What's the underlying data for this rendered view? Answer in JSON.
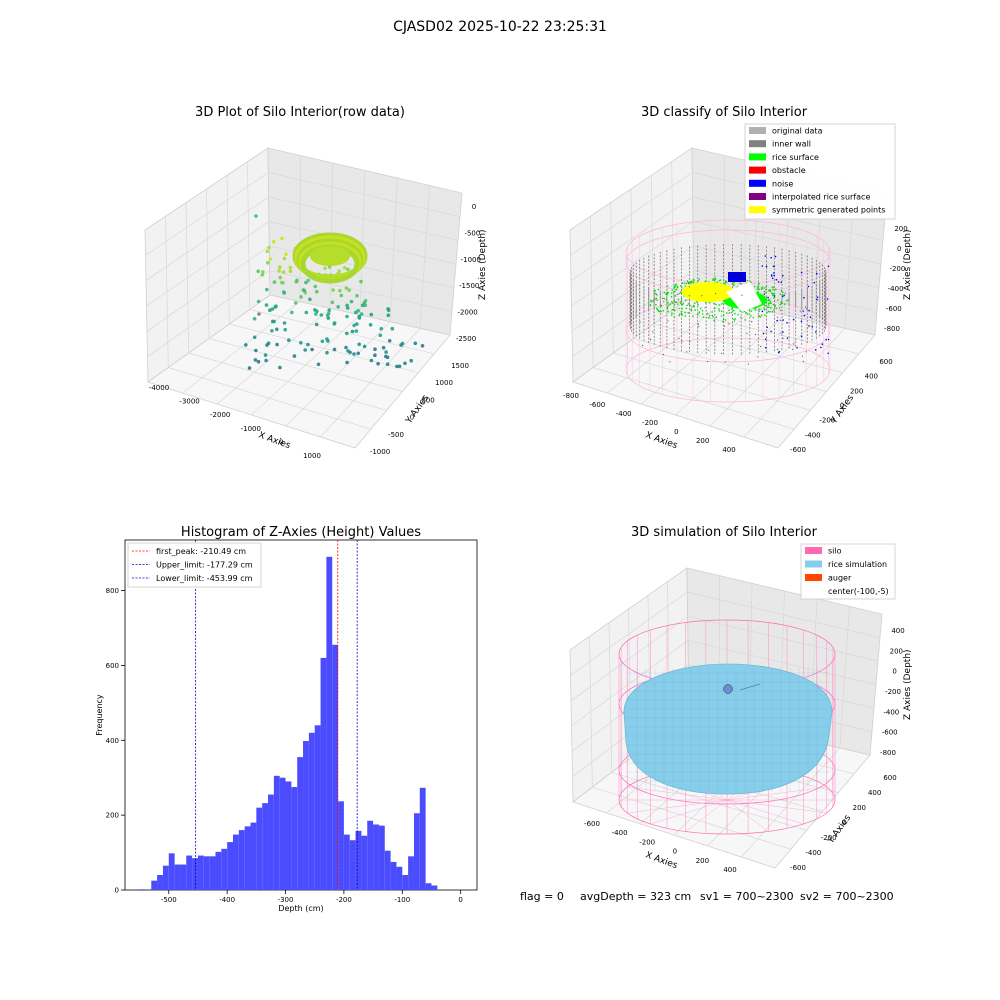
{
  "figure": {
    "suptitle": "CJASD02 2025-10-22 23:25:31",
    "footer": {
      "flag": "flag = 0",
      "avg_depth": "avgDepth = 323 cm",
      "sv1": "sv1 = 700~2300",
      "sv2": "sv2 = 700~2300"
    }
  },
  "panels": {
    "raw": {
      "title": "3D Plot of Silo Interior(row data)",
      "xlabel": "X Axies",
      "ylabel": "Y Axies",
      "zlabel": "Z Axies (Depth)",
      "xticks": [
        "-4000",
        "-3000",
        "-2000",
        "-1000",
        "0",
        "1000"
      ],
      "yticks": [
        "-1000",
        "-500",
        "0",
        "500",
        "1000",
        "1500"
      ],
      "zticks": [
        "0",
        "-500",
        "-1000",
        "-1500",
        "-2000",
        "-2500"
      ]
    },
    "classify": {
      "title": "3D classify of Silo Interior",
      "xlabel": "X Axies",
      "ylabel": "Y Axies",
      "zlabel": "Z Axies (Depth)",
      "xticks": [
        "-800",
        "-600",
        "-400",
        "-200",
        "0",
        "200",
        "400"
      ],
      "yticks": [
        "-600",
        "-400",
        "-200",
        "0",
        "200",
        "400",
        "600"
      ],
      "zticks": [
        "200",
        "0",
        "-200",
        "-400",
        "-600",
        "-800"
      ],
      "legend": [
        {
          "label": "original data",
          "color": "#b0b0b0"
        },
        {
          "label": "inner wall",
          "color": "#808080"
        },
        {
          "label": "rice surface",
          "color": "#00ff00"
        },
        {
          "label": "obstacle",
          "color": "#ff0000"
        },
        {
          "label": "noise",
          "color": "#0000ff"
        },
        {
          "label": "interpolated rice surface",
          "color": "#800080"
        },
        {
          "label": "symmetric generated points",
          "color": "#ffff00"
        }
      ]
    },
    "sim": {
      "title": "3D simulation of Silo Interior",
      "xlabel": "X Axies",
      "ylabel": "Y Axies",
      "zlabel": "Z Axies (Depth)",
      "xticks": [
        "-600",
        "-400",
        "-200",
        "0",
        "200",
        "400"
      ],
      "yticks": [
        "-600",
        "-400",
        "-200",
        "0",
        "200",
        "400",
        "600"
      ],
      "zticks": [
        "400",
        "200",
        "0",
        "-200",
        "-400",
        "-600",
        "-800"
      ],
      "legend": [
        {
          "label": "silo",
          "color": "#ff69b4"
        },
        {
          "label": "rice simulation",
          "color": "#87ceeb"
        },
        {
          "label": "auger",
          "color": "#ff4500"
        },
        {
          "label": "center(-100,-5)",
          "color": ""
        }
      ]
    }
  },
  "chart_data": [
    {
      "type": "scatter",
      "title": "3D Plot of Silo Interior(row data)",
      "xlabel": "X Axies",
      "ylabel": "Y Axies",
      "zlabel": "Z Axies (Depth)",
      "xlim": [
        -4300,
        1500
      ],
      "ylim": [
        -1000,
        1700
      ],
      "zlim": [
        -2700,
        100
      ]
    },
    {
      "type": "scatter",
      "title": "3D classify of Silo Interior",
      "xlabel": "X Axies",
      "ylabel": "Y Axies",
      "zlabel": "Z Axies (Depth)",
      "xlim": [
        -800,
        500
      ],
      "ylim": [
        -650,
        650
      ],
      "zlim": [
        -900,
        300
      ],
      "series": [
        {
          "name": "original data"
        },
        {
          "name": "inner wall"
        },
        {
          "name": "rice surface"
        },
        {
          "name": "obstacle"
        },
        {
          "name": "noise"
        },
        {
          "name": "interpolated rice surface"
        },
        {
          "name": "symmetric generated points"
        }
      ]
    },
    {
      "type": "bar",
      "title": "Histogram of Z-Axies (Height) Values",
      "xlabel": "Depth (cm)",
      "ylabel": "Frequency",
      "xlim": [
        -575,
        28
      ],
      "ylim": [
        0,
        935
      ],
      "xticks": [
        -500,
        -400,
        -300,
        -200,
        -100,
        0
      ],
      "yticks": [
        0,
        200,
        400,
        600,
        800
      ],
      "bin_width": 10,
      "bins": [
        [
          -550,
          2
        ],
        [
          -540,
          0
        ],
        [
          -530,
          25
        ],
        [
          -520,
          40
        ],
        [
          -510,
          65
        ],
        [
          -500,
          98
        ],
        [
          -490,
          68
        ],
        [
          -480,
          68
        ],
        [
          -470,
          92
        ],
        [
          -460,
          85
        ],
        [
          -450,
          92
        ],
        [
          -440,
          90
        ],
        [
          -430,
          90
        ],
        [
          -420,
          102
        ],
        [
          -410,
          110
        ],
        [
          -400,
          128
        ],
        [
          -390,
          148
        ],
        [
          -380,
          160
        ],
        [
          -370,
          170
        ],
        [
          -360,
          180
        ],
        [
          -350,
          220
        ],
        [
          -340,
          232
        ],
        [
          -330,
          255
        ],
        [
          -320,
          305
        ],
        [
          -310,
          300
        ],
        [
          -300,
          290
        ],
        [
          -290,
          275
        ],
        [
          -280,
          355
        ],
        [
          -270,
          398
        ],
        [
          -260,
          420
        ],
        [
          -250,
          440
        ],
        [
          -240,
          620
        ],
        [
          -230,
          890
        ],
        [
          -220,
          655
        ],
        [
          -210,
          237
        ],
        [
          -200,
          148
        ],
        [
          -190,
          133
        ],
        [
          -180,
          158
        ],
        [
          -170,
          145
        ],
        [
          -160,
          185
        ],
        [
          -150,
          175
        ],
        [
          -140,
          172
        ],
        [
          -130,
          105
        ],
        [
          -120,
          75
        ],
        [
          -110,
          62
        ],
        [
          -100,
          40
        ],
        [
          -90,
          90
        ],
        [
          -80,
          205
        ],
        [
          -70,
          273
        ],
        [
          -60,
          18
        ],
        [
          -50,
          12
        ]
      ],
      "reference_lines": [
        {
          "name": "first_peak: -210.49 cm",
          "x": -210.49,
          "color": "#ff0000"
        },
        {
          "name": "Upper_limit: -177.29 cm",
          "x": -177.29,
          "color": "#0000cc"
        },
        {
          "name": "Lower_limit: -453.99 cm",
          "x": -453.99,
          "color": "#0000cc"
        }
      ],
      "legend_placement": "top-left"
    },
    {
      "type": "scatter",
      "title": "3D simulation of Silo Interior",
      "xlabel": "X Axies",
      "ylabel": "Y Axies",
      "zlabel": "Z Axies (Depth)",
      "xlim": [
        -700,
        500
      ],
      "ylim": [
        -650,
        650
      ],
      "zlim": [
        -900,
        450
      ],
      "series": [
        {
          "name": "silo"
        },
        {
          "name": "rice simulation"
        },
        {
          "name": "auger"
        },
        {
          "name": "center(-100,-5)"
        }
      ]
    }
  ]
}
